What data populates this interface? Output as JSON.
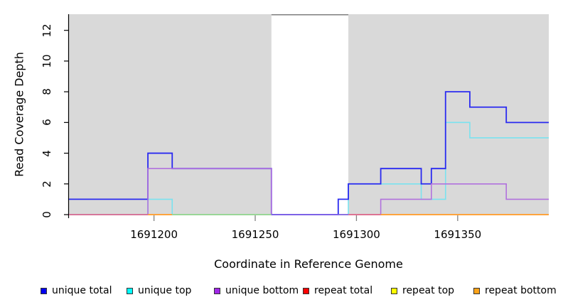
{
  "chart_data": {
    "type": "line",
    "step": true,
    "title": "",
    "xlabel": "Coordinate in Reference Genome",
    "ylabel": "Read Coverage Depth",
    "xlim": [
      1691158,
      1691395
    ],
    "ylim": [
      0,
      13.05
    ],
    "x_ticks": [
      1691200,
      1691250,
      1691300,
      1691350
    ],
    "y_ticks": [
      0,
      2,
      4,
      6,
      8,
      10,
      12
    ],
    "grid": false,
    "panel_background": "#d9d9d9",
    "gap_region": {
      "x_start": 1691258,
      "x_end": 1691296,
      "fill": "#ffffff",
      "top_line_color": "#7e7e7e",
      "top_line_depth": 13.05
    },
    "series": [
      {
        "name": "repeat total",
        "color": "#e0688c",
        "width": 1.2,
        "steps": [
          [
            1691158,
            0
          ]
        ]
      },
      {
        "name": "repeat top",
        "color": "#f5e642",
        "width": 1.2,
        "steps": [
          [
            1691158,
            0
          ]
        ]
      },
      {
        "name": "repeat bottom",
        "color": "#ff9d2e",
        "width": 1.4,
        "steps": [
          [
            1691158,
            0
          ]
        ]
      },
      {
        "name": "unique top",
        "color": "#7ae2ef",
        "width": 1.6,
        "steps": [
          [
            1691158,
            0
          ],
          [
            1691197,
            1
          ],
          [
            1691209,
            0
          ],
          [
            1691296,
            2
          ],
          [
            1691332,
            1
          ],
          [
            1691344,
            6
          ],
          [
            1691356,
            5
          ]
        ]
      },
      {
        "name": "unique total",
        "color": "#2a2af0",
        "width": 1.8,
        "steps": [
          [
            1691158,
            1
          ],
          [
            1691197,
            4
          ],
          [
            1691209,
            3
          ],
          [
            1691258,
            0
          ],
          [
            1691291,
            1
          ],
          [
            1691296,
            2
          ],
          [
            1691312,
            3
          ],
          [
            1691332,
            2
          ],
          [
            1691337,
            3
          ],
          [
            1691344,
            8
          ],
          [
            1691356,
            7
          ],
          [
            1691374,
            6
          ]
        ]
      },
      {
        "name": "unique bottom",
        "color": "#b172dd",
        "width": 1.6,
        "steps": [
          [
            1691158,
            0
          ],
          [
            1691197,
            3
          ],
          [
            1691258,
            0
          ],
          [
            1691312,
            1
          ],
          [
            1691337,
            2
          ],
          [
            1691374,
            1
          ]
        ]
      }
    ],
    "baseline_segments": [
      {
        "x_start": 1691158,
        "x_end": 1691197,
        "color": "#e0688c"
      },
      {
        "x_start": 1691197,
        "x_end": 1691209,
        "color": "#ff9d2e"
      },
      {
        "x_start": 1691209,
        "x_end": 1691258,
        "color": "#8fd98f"
      },
      {
        "x_start": 1691258,
        "x_end": 1691296,
        "color": "#7d63e8"
      },
      {
        "x_start": 1691296,
        "x_end": 1691312,
        "color": "#e0688c"
      },
      {
        "x_start": 1691312,
        "x_end": 1691395,
        "color": "#ff9d2e"
      }
    ],
    "axis_colors": {
      "y_axis": "#000000",
      "x_ticks": "#808080"
    }
  },
  "legend": {
    "items": [
      {
        "label": "unique total",
        "color": "#0000f0"
      },
      {
        "label": "unique top",
        "color": "#00ffff"
      },
      {
        "label": "unique bottom",
        "color": "#a127e8"
      },
      {
        "label": "repeat total",
        "color": "#ff0000"
      },
      {
        "label": "repeat top",
        "color": "#ffff00"
      },
      {
        "label": "repeat bottom",
        "color": "#ffa318"
      }
    ]
  }
}
